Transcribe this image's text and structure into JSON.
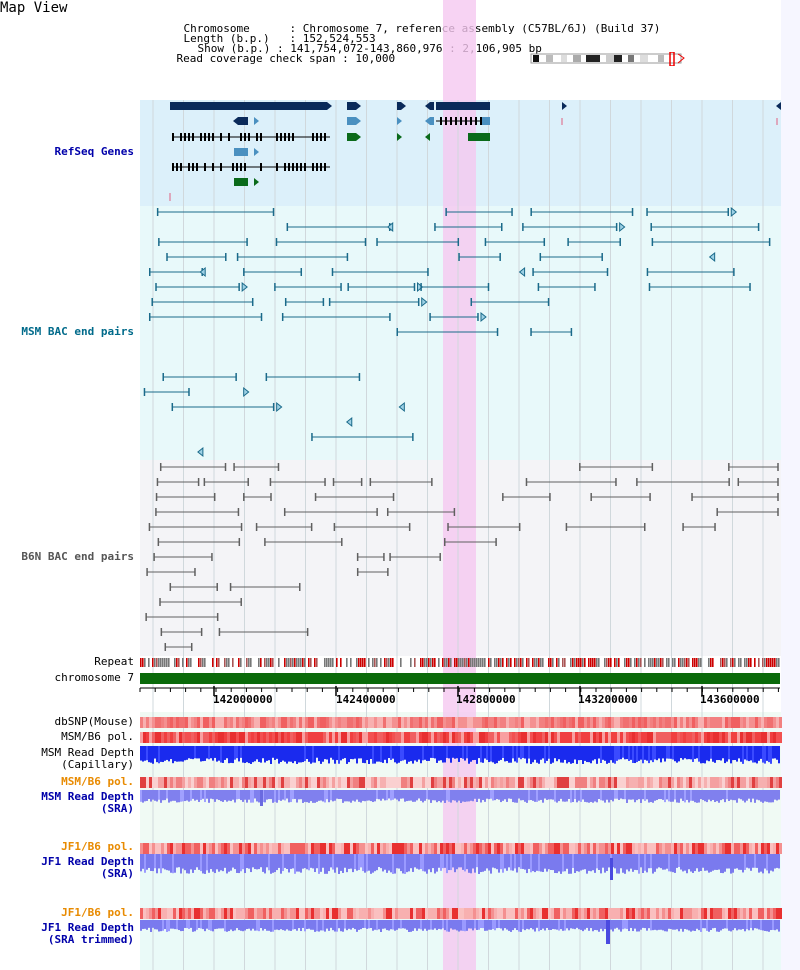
{
  "page": {
    "title": "Map View"
  },
  "header": {
    "rows": [
      {
        "key": "Chromosome",
        "value": "Chromosome 7, reference assembly (C57BL/6J) (Build 37)"
      },
      {
        "key": "Length (b.p.)",
        "value": "152,524,553"
      },
      {
        "key": "Show (b.p.)",
        "value": "141,754,072-143,860,976 : 2,106,905 bp"
      },
      {
        "key": "Read coverage check span",
        "value": "10,000"
      }
    ]
  },
  "tracks": {
    "refseq": "RefSeq Genes",
    "msm_bac": "MSM BAC end pairs",
    "b6n_bac": "B6N BAC end pairs",
    "repeat": "Repeat",
    "chromosome": "chromosome 7",
    "dbsnp": "dbSNP(Mouse)",
    "msm_b6_pol_1": "MSM/B6 pol.",
    "msm_read_depth_cap_1": "MSM Read Depth",
    "msm_read_depth_cap_2": "(Capillary)",
    "msm_b6_pol_2": "MSM/B6 pol.",
    "msm_read_depth_sra_1": "MSM Read Depth",
    "msm_read_depth_sra_2": "(SRA)",
    "jf1_b6_pol_1": "JF1/B6 pol.",
    "jf1_read_depth_sra_1": "JF1 Read Depth",
    "jf1_read_depth_sra_2": "(SRA)",
    "jf1_b6_pol_2": "JF1/B6 pol.",
    "jf1_read_depth_trim_1": "JF1 Read Depth",
    "jf1_read_depth_trim_2": "(SRA trimmed)"
  },
  "axis": {
    "ticks": [
      "142000000",
      "142400000",
      "142800000",
      "143200000",
      "143600000"
    ]
  },
  "colors": {
    "gene_dark": "#0a2a5a",
    "gene_light": "#4a90c0",
    "gene_green": "#0a6a1a",
    "msm_pair": "#1a6a8a",
    "b6n_pair": "#606060",
    "highlight": "#f5c8f0",
    "chrom_bar": "#0a6a0a"
  }
}
